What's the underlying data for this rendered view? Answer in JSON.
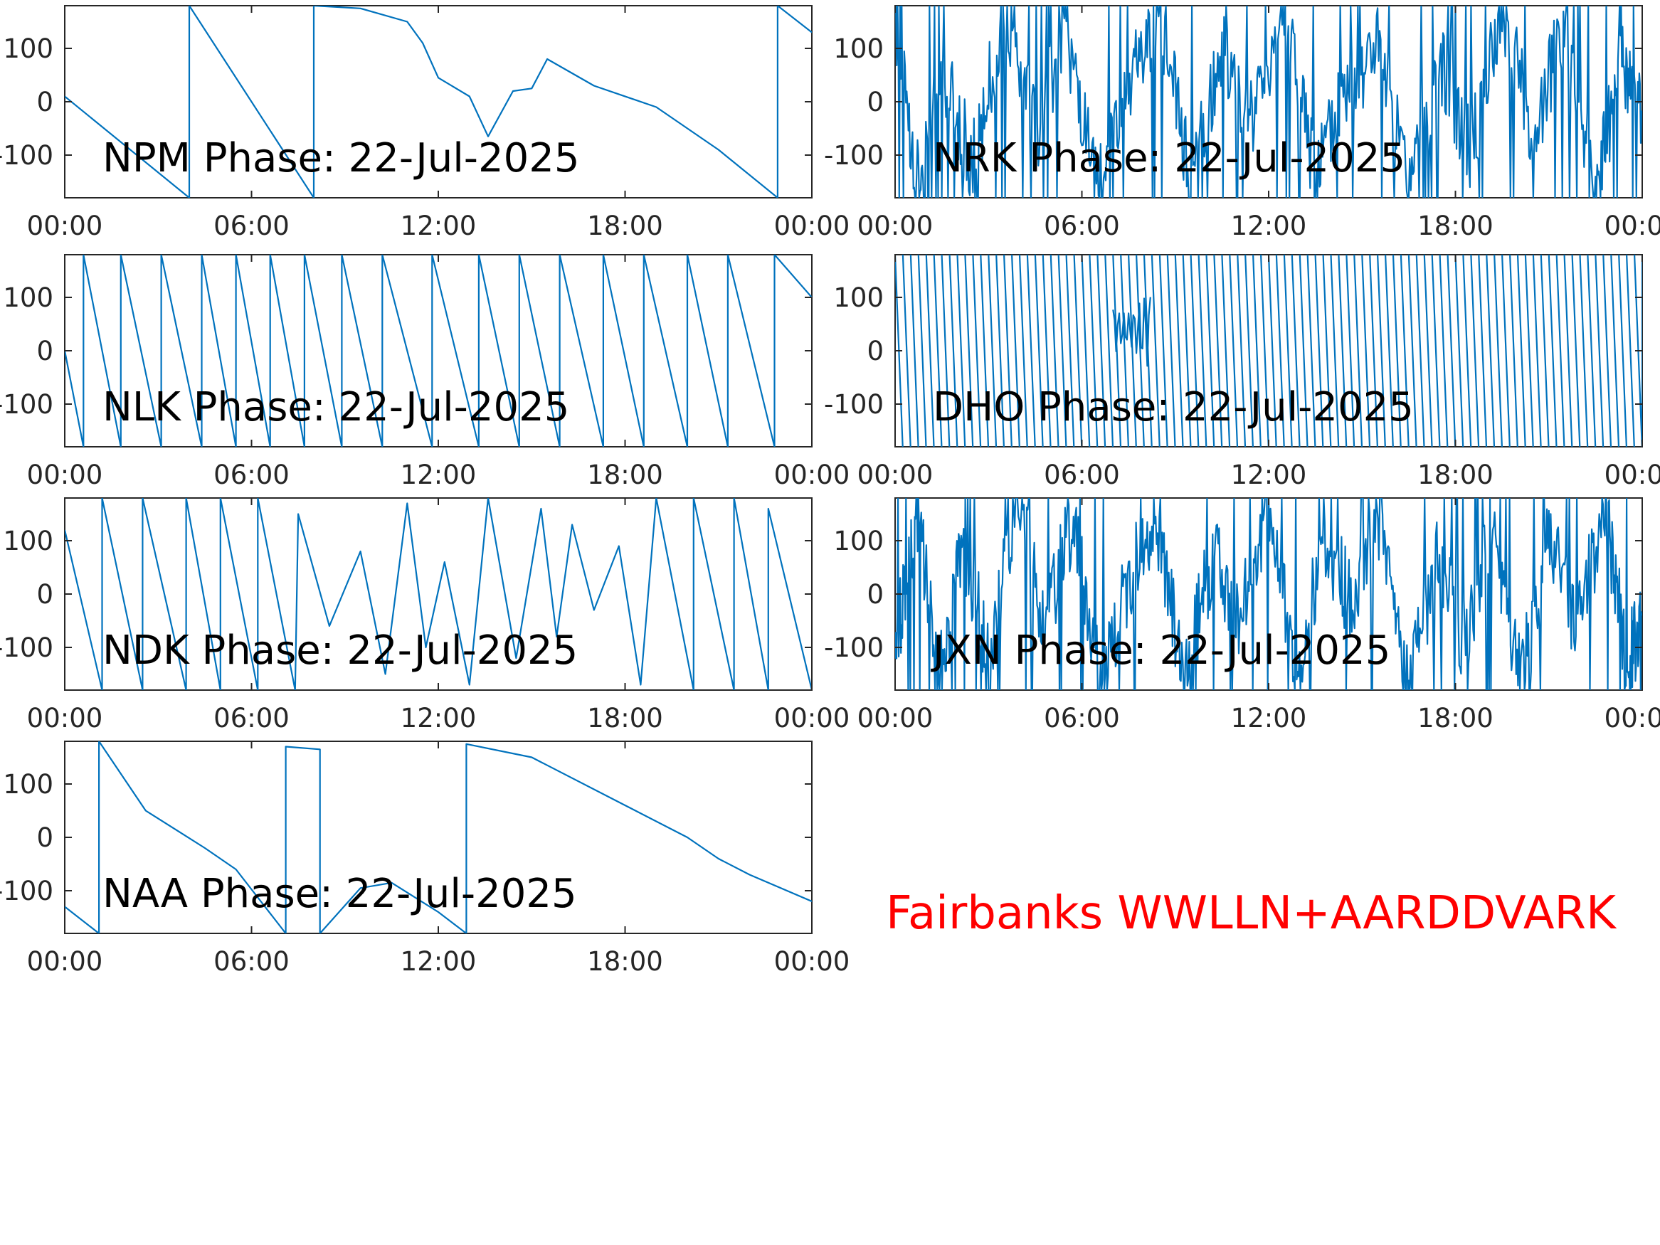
{
  "footer_label": "Fairbanks WWLLN+AARDDVARK",
  "footer_color": "#ff0000",
  "line_color": "#0072bd",
  "chart_data": [
    {
      "type": "line",
      "station": "NPM",
      "title": "NPM Phase: 22-Jul-2025",
      "xlabel": "",
      "ylabel": "",
      "x_ticks": [
        "00:00",
        "06:00",
        "12:00",
        "18:00",
        "00:00"
      ],
      "xlim_hours": [
        0,
        24
      ],
      "y_ticks": [
        "100",
        "0",
        "-100"
      ],
      "ylim": [
        -180,
        180
      ],
      "series": [
        {
          "x": [
            0,
            4,
            4,
            8,
            8,
            9.5,
            11,
            11.5,
            12,
            13,
            13.6,
            14.4,
            15,
            15.5,
            17,
            19,
            21,
            22.9,
            22.9,
            24
          ],
          "y": [
            10,
            -180,
            180,
            -180,
            180,
            175,
            150,
            110,
            45,
            10,
            -65,
            20,
            25,
            80,
            30,
            -10,
            -90,
            -180,
            180,
            130
          ]
        }
      ]
    },
    {
      "type": "line",
      "station": "NRK",
      "title": "NRK Phase: 22-Jul-2025",
      "xlabel": "",
      "ylabel": "",
      "x_ticks": [
        "00:00",
        "06:00",
        "12:00",
        "18:00",
        "00:00"
      ],
      "xlim_hours": [
        0,
        24
      ],
      "y_ticks": [
        "100",
        "0",
        "-100"
      ],
      "ylim": [
        -180,
        180
      ],
      "series": [
        {
          "x": [
            0,
            0.8,
            1.5,
            2.5,
            3.5,
            4.5,
            5.5,
            6.5,
            7.5,
            8.5,
            9.5,
            10.5,
            11.5,
            12.5,
            13.5,
            14.5,
            15.5,
            16.5,
            17.5,
            18.5,
            19.5,
            20.5,
            21.5,
            22.5,
            23.3,
            24
          ],
          "y": [
            150,
            -170,
            60,
            -120,
            170,
            -60,
            130,
            -180,
            40,
            160,
            -150,
            90,
            -30,
            175,
            -140,
            20,
            110,
            -170,
            80,
            -90,
            165,
            -60,
            140,
            -175,
            70,
            -20
          ]
        }
      ]
    },
    {
      "type": "line",
      "station": "NLK",
      "title": "NLK Phase: 22-Jul-2025",
      "xlabel": "",
      "ylabel": "",
      "x_ticks": [
        "00:00",
        "06:00",
        "12:00",
        "18:00",
        "00:00"
      ],
      "xlim_hours": [
        0,
        24
      ],
      "y_ticks": [
        "100",
        "0",
        "-100"
      ],
      "ylim": [
        -180,
        180
      ],
      "series": [
        {
          "x": [
            0,
            0.6,
            0.6,
            1.8,
            1.8,
            3.1,
            3.1,
            4.4,
            4.4,
            5.5,
            5.5,
            6.6,
            6.6,
            7.7,
            7.7,
            8.9,
            8.9,
            10.2,
            10.2,
            11.8,
            11.8,
            13.3,
            13.3,
            14.6,
            14.6,
            15.9,
            15.9,
            17.3,
            17.3,
            18.6,
            18.6,
            20.0,
            20.0,
            21.3,
            21.3,
            22.8,
            22.8,
            24
          ],
          "y": [
            0,
            -180,
            180,
            -180,
            180,
            -180,
            180,
            -180,
            180,
            -180,
            180,
            -180,
            180,
            -180,
            180,
            -180,
            180,
            -180,
            180,
            -180,
            180,
            -180,
            180,
            -180,
            180,
            -180,
            180,
            -180,
            180,
            -180,
            180,
            -180,
            180,
            -180,
            180,
            -180,
            180,
            100
          ]
        }
      ]
    },
    {
      "type": "line",
      "station": "DHO",
      "title": "DHO Phase: 22-Jul-2025",
      "xlabel": "",
      "ylabel": "",
      "x_ticks": [
        "00:00",
        "06:00",
        "12:00",
        "18:00",
        "00:00"
      ],
      "xlim_hours": [
        0,
        24
      ],
      "y_ticks": [
        "100",
        "0",
        "-100"
      ],
      "ylim": [
        -180,
        180
      ],
      "series": [
        {
          "x": [
            0,
            24
          ],
          "y": [
            180,
            -180
          ]
        }
      ]
    },
    {
      "type": "line",
      "station": "NDK",
      "title": "NDK Phase: 22-Jul-2025",
      "xlabel": "",
      "ylabel": "",
      "x_ticks": [
        "00:00",
        "06:00",
        "12:00",
        "18:00",
        "00:00"
      ],
      "xlim_hours": [
        0,
        24
      ],
      "y_ticks": [
        "100",
        "0",
        "-100"
      ],
      "ylim": [
        -180,
        180
      ],
      "series": [
        {
          "x": [
            0,
            1.2,
            1.2,
            2.5,
            2.5,
            3.9,
            3.9,
            5.0,
            5.0,
            6.2,
            6.2,
            7.4,
            7.5,
            8.5,
            9.5,
            10.3,
            11.0,
            11.6,
            12.2,
            13.0,
            13.6,
            14.5,
            15.3,
            15.8,
            16.3,
            17.0,
            17.8,
            18.5,
            19.0,
            20.2,
            20.2,
            21.5,
            21.5,
            22.6,
            22.6,
            24
          ],
          "y": [
            120,
            -180,
            180,
            -180,
            180,
            -180,
            180,
            -180,
            180,
            -180,
            180,
            -180,
            150,
            -60,
            80,
            -150,
            170,
            -100,
            60,
            -170,
            180,
            -120,
            160,
            -80,
            130,
            -30,
            90,
            -170,
            180,
            -180,
            180,
            -180,
            180,
            -180,
            160,
            -180
          ]
        }
      ]
    },
    {
      "type": "line",
      "station": "JXN",
      "title": "JXN Phase: 22-Jul-2025",
      "xlabel": "",
      "ylabel": "",
      "x_ticks": [
        "00:00",
        "06:00",
        "12:00",
        "18:00",
        "00:00"
      ],
      "xlim_hours": [
        0,
        24
      ],
      "y_ticks": [
        "100",
        "0",
        "-100"
      ],
      "ylim": [
        -180,
        180
      ],
      "series": [
        {
          "x": [
            0,
            0.7,
            1.4,
            2.2,
            3.0,
            3.9,
            4.8,
            5.7,
            6.6,
            7.5,
            8.4,
            9.3,
            10.2,
            11.1,
            12.0,
            12.9,
            13.8,
            14.7,
            15.6,
            16.5,
            17.4,
            18.3,
            19.2,
            20.1,
            21.0,
            21.9,
            22.8,
            23.5,
            24
          ],
          "y": [
            -100,
            160,
            -170,
            90,
            -120,
            170,
            -60,
            140,
            -180,
            30,
            120,
            -150,
            70,
            -40,
            175,
            -160,
            100,
            -20,
            150,
            -175,
            60,
            -90,
            130,
            -170,
            110,
            -60,
            160,
            -120,
            -60
          ]
        }
      ]
    },
    {
      "type": "line",
      "station": "NAA",
      "title": "NAA Phase: 22-Jul-2025",
      "xlabel": "",
      "ylabel": "",
      "x_ticks": [
        "00:00",
        "06:00",
        "12:00",
        "18:00",
        "00:00"
      ],
      "xlim_hours": [
        0,
        24
      ],
      "y_ticks": [
        "100",
        "0",
        "-100"
      ],
      "ylim": [
        -180,
        180
      ],
      "series": [
        {
          "x": [
            0,
            1.1,
            1.1,
            2.6,
            4.5,
            5.5,
            7.1,
            7.1,
            8.2,
            8.2,
            9.5,
            10.5,
            12.0,
            12.9,
            12.9,
            15.0,
            18.0,
            20.0,
            21.0,
            22.0,
            24
          ],
          "y": [
            -130,
            -180,
            180,
            50,
            -20,
            -60,
            -180,
            170,
            165,
            -180,
            -95,
            -85,
            -140,
            -180,
            175,
            150,
            60,
            0,
            -40,
            -70,
            -120
          ]
        }
      ]
    }
  ]
}
